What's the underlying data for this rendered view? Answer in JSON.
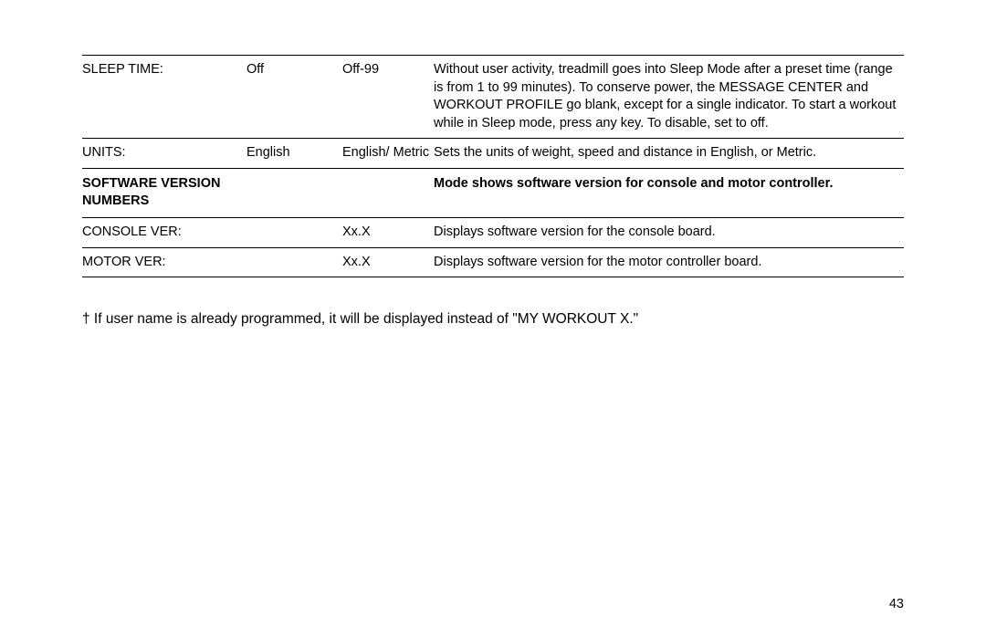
{
  "table": {
    "rows": [
      {
        "label": "SLEEP TIME:",
        "default": "Off",
        "range": "Off-99",
        "desc": "Without user activity, treadmill goes into Sleep Mode after a preset time (range is from 1 to 99 minutes). To conserve power, the MESSAGE CENTER and WORKOUT PROFILE go blank, except for a single indicator. To start a workout while in Sleep mode, press any key. To disable, set to off."
      },
      {
        "label": "UNITS:",
        "default": "English",
        "range": "English/ Metric",
        "desc": "Sets the units of weight, speed and distance in English, or Metric."
      }
    ],
    "section": {
      "label": "SOFTWARE VERSION NUMBERS",
      "desc": "Mode shows software version for console and motor controller."
    },
    "software_rows": [
      {
        "label": "CONSOLE VER:",
        "default": "",
        "range": "Xx.X",
        "desc": "Displays software version for the console board."
      },
      {
        "label": "MOTOR VER:",
        "default": "",
        "range": "Xx.X",
        "desc": "Displays software version for the motor controller board."
      }
    ]
  },
  "footnote": "† If user name is already programmed, it will be displayed instead of \"MY WORKOUT X.\"",
  "page_number": "43"
}
